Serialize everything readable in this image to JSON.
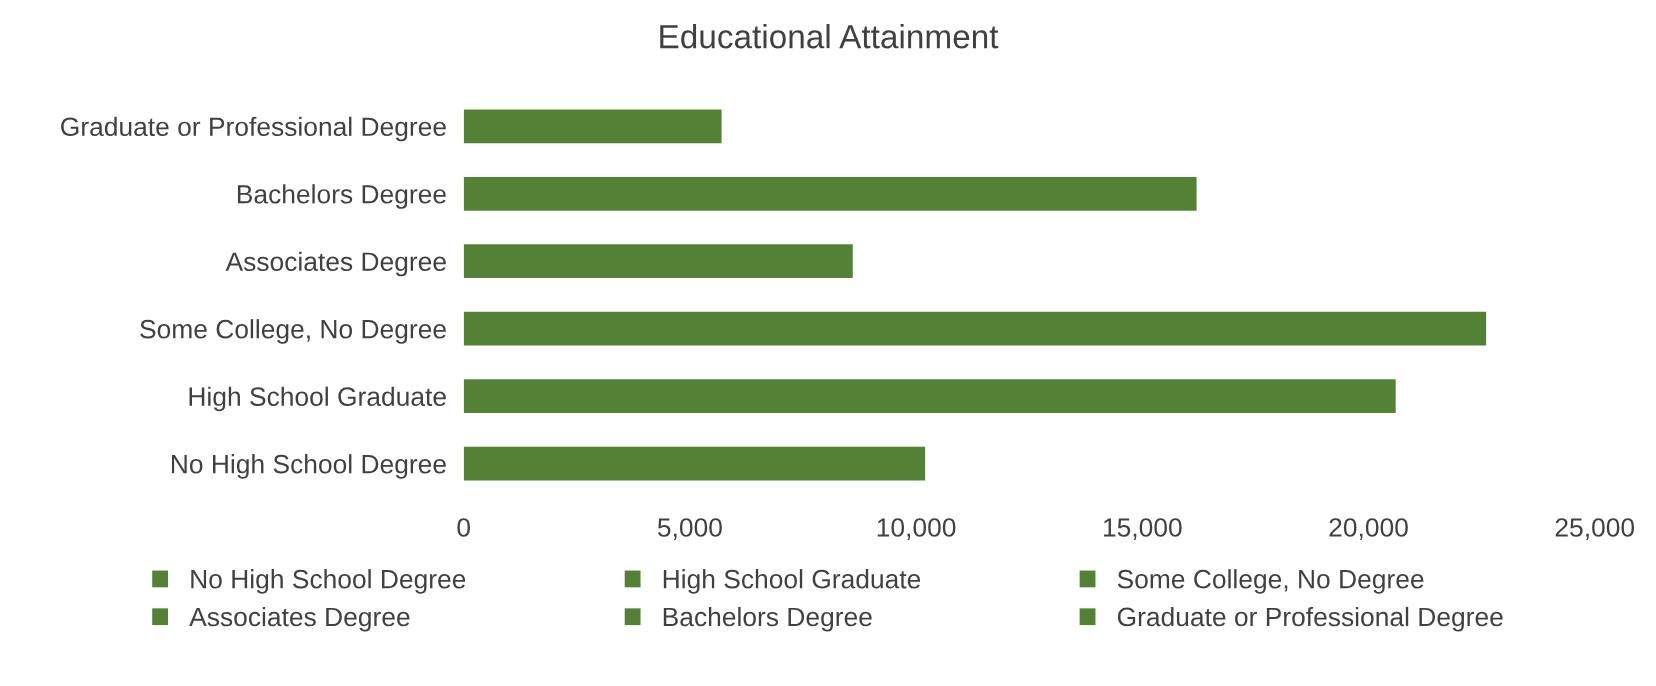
{
  "chart_data": {
    "type": "bar",
    "orientation": "horizontal",
    "stacked": true,
    "title": "Educational Attainment",
    "categories": [
      "Graduate or Professional Degree",
      "Bachelors Degree",
      "Associates Degree",
      "Some College, No Degree",
      "High School Graduate",
      "No High School Degree"
    ],
    "series": [
      {
        "name": "No High School Degree",
        "color": "#538135",
        "values": [
          null,
          null,
          null,
          null,
          null,
          10200
        ]
      },
      {
        "name": "High School Graduate",
        "color": "#538135",
        "values": [
          null,
          null,
          null,
          null,
          20600,
          null
        ]
      },
      {
        "name": "Some College, No Degree",
        "color": "#538135",
        "values": [
          null,
          null,
          null,
          22600,
          null,
          null
        ]
      },
      {
        "name": "Associates Degree",
        "color": "#538135",
        "values": [
          null,
          null,
          8600,
          null,
          null,
          null
        ]
      },
      {
        "name": "Bachelors Degree",
        "color": "#538135",
        "values": [
          null,
          16200,
          null,
          null,
          null,
          null
        ]
      },
      {
        "name": "Graduate or Professional Degree",
        "color": "#538135",
        "values": [
          5700,
          null,
          null,
          null,
          null,
          null
        ]
      }
    ],
    "xlim": [
      0,
      25000
    ],
    "xticks": [
      {
        "value": 0,
        "label": "0"
      },
      {
        "value": 5000,
        "label": "5,000"
      },
      {
        "value": 10000,
        "label": "10,000"
      },
      {
        "value": 15000,
        "label": "15,000"
      },
      {
        "value": 20000,
        "label": "20,000"
      },
      {
        "value": 25000,
        "label": "25,000"
      }
    ],
    "grid": false,
    "legend": "bottom"
  }
}
